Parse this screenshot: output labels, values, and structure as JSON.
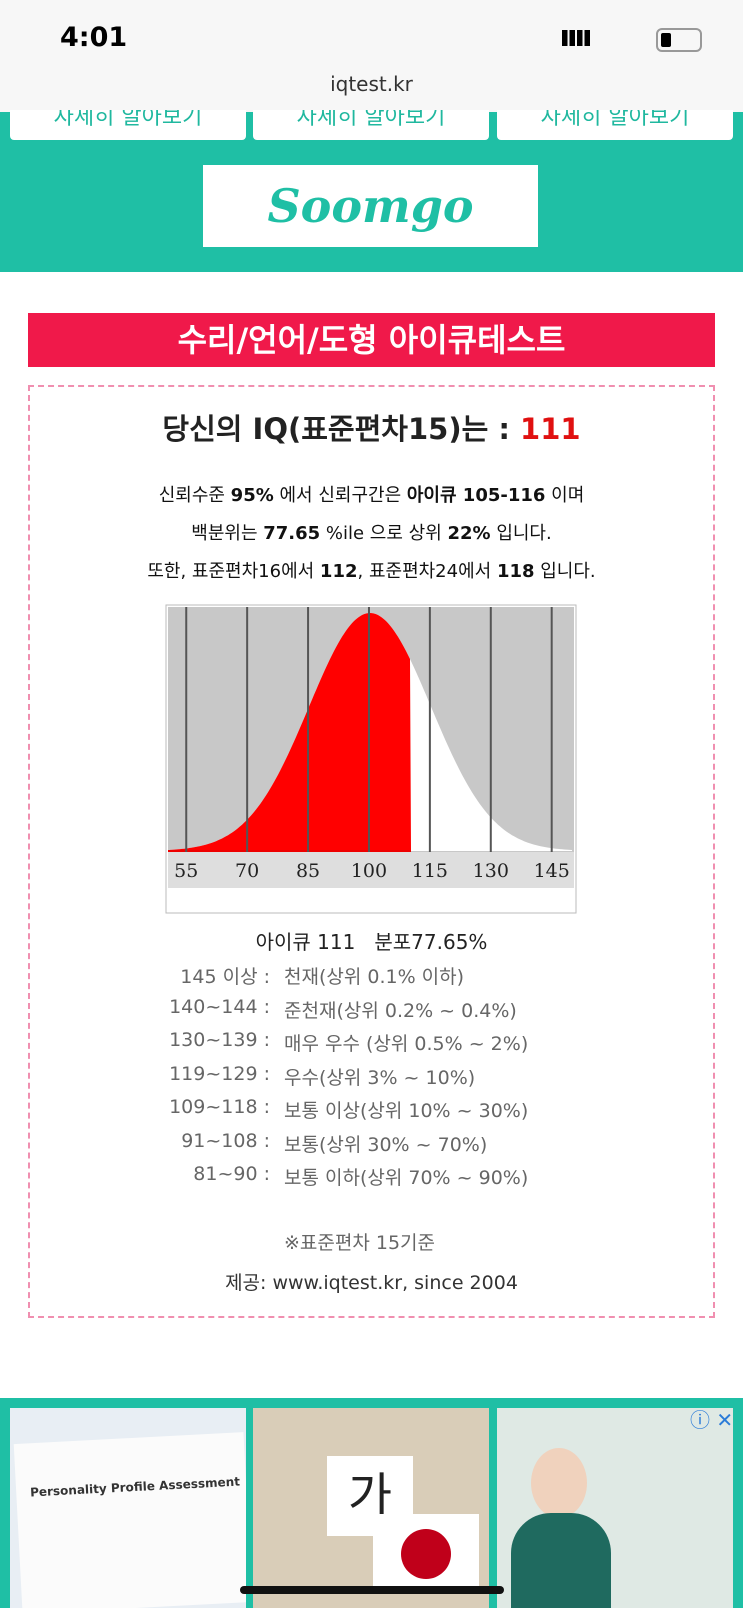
{
  "status_bar": {
    "time": "4:01",
    "url": "iqtest.kr"
  },
  "top_buttons": [
    "자세히 알아보기",
    "자세히 알아보기",
    "자세히 알아보기"
  ],
  "sponsor_logo": "Soomgo",
  "banner": "수리/언어/도형 아이큐테스트",
  "result": {
    "heading": "당신의 IQ(표준편차15)는 : ",
    "iq": "111",
    "lines": [
      [
        "신뢰수준 ",
        "95%",
        " 에서 신뢰구간은 ",
        "아이큐 105-116",
        " 이며"
      ],
      [
        "백분위는 ",
        "77.65",
        " %ile 으로 상위 ",
        "22%",
        " 입니다."
      ],
      [
        "또한, 표준편차16에서 ",
        "112",
        ", 표준편차24에서 ",
        "118",
        " 입니다."
      ]
    ]
  },
  "chart": {
    "xlim": [
      51,
      150
    ],
    "xticks": [
      55,
      70,
      85,
      100,
      115,
      130,
      145
    ],
    "caption": "아이큐 111   분포77.65%"
  },
  "scale": {
    "rows": [
      [
        "145 이상 :",
        "천재(상위 0.1% 이하)"
      ],
      [
        "140~144 :",
        "준천재(상위 0.2% ~ 0.4%)"
      ],
      [
        "130~139 :",
        "매우 우수 (상위 0.5% ~ 2%)"
      ],
      [
        "119~129 :",
        "우수(상위 3% ~ 10%)"
      ],
      [
        "109~118 :",
        "보통 이상(상위 10% ~ 30%)"
      ],
      [
        "91~108 :",
        "보통(상위 30% ~ 70%)"
      ],
      [
        "81~90 :",
        "보통 이하(상위 70% ~ 90%)"
      ]
    ],
    "note": "※표준편차 15기준",
    "credit": "제공: www.iqtest.kr, since 2004"
  },
  "ad": {
    "card1_title": "Personality Profile Assessment",
    "card2_text": "가"
  }
}
